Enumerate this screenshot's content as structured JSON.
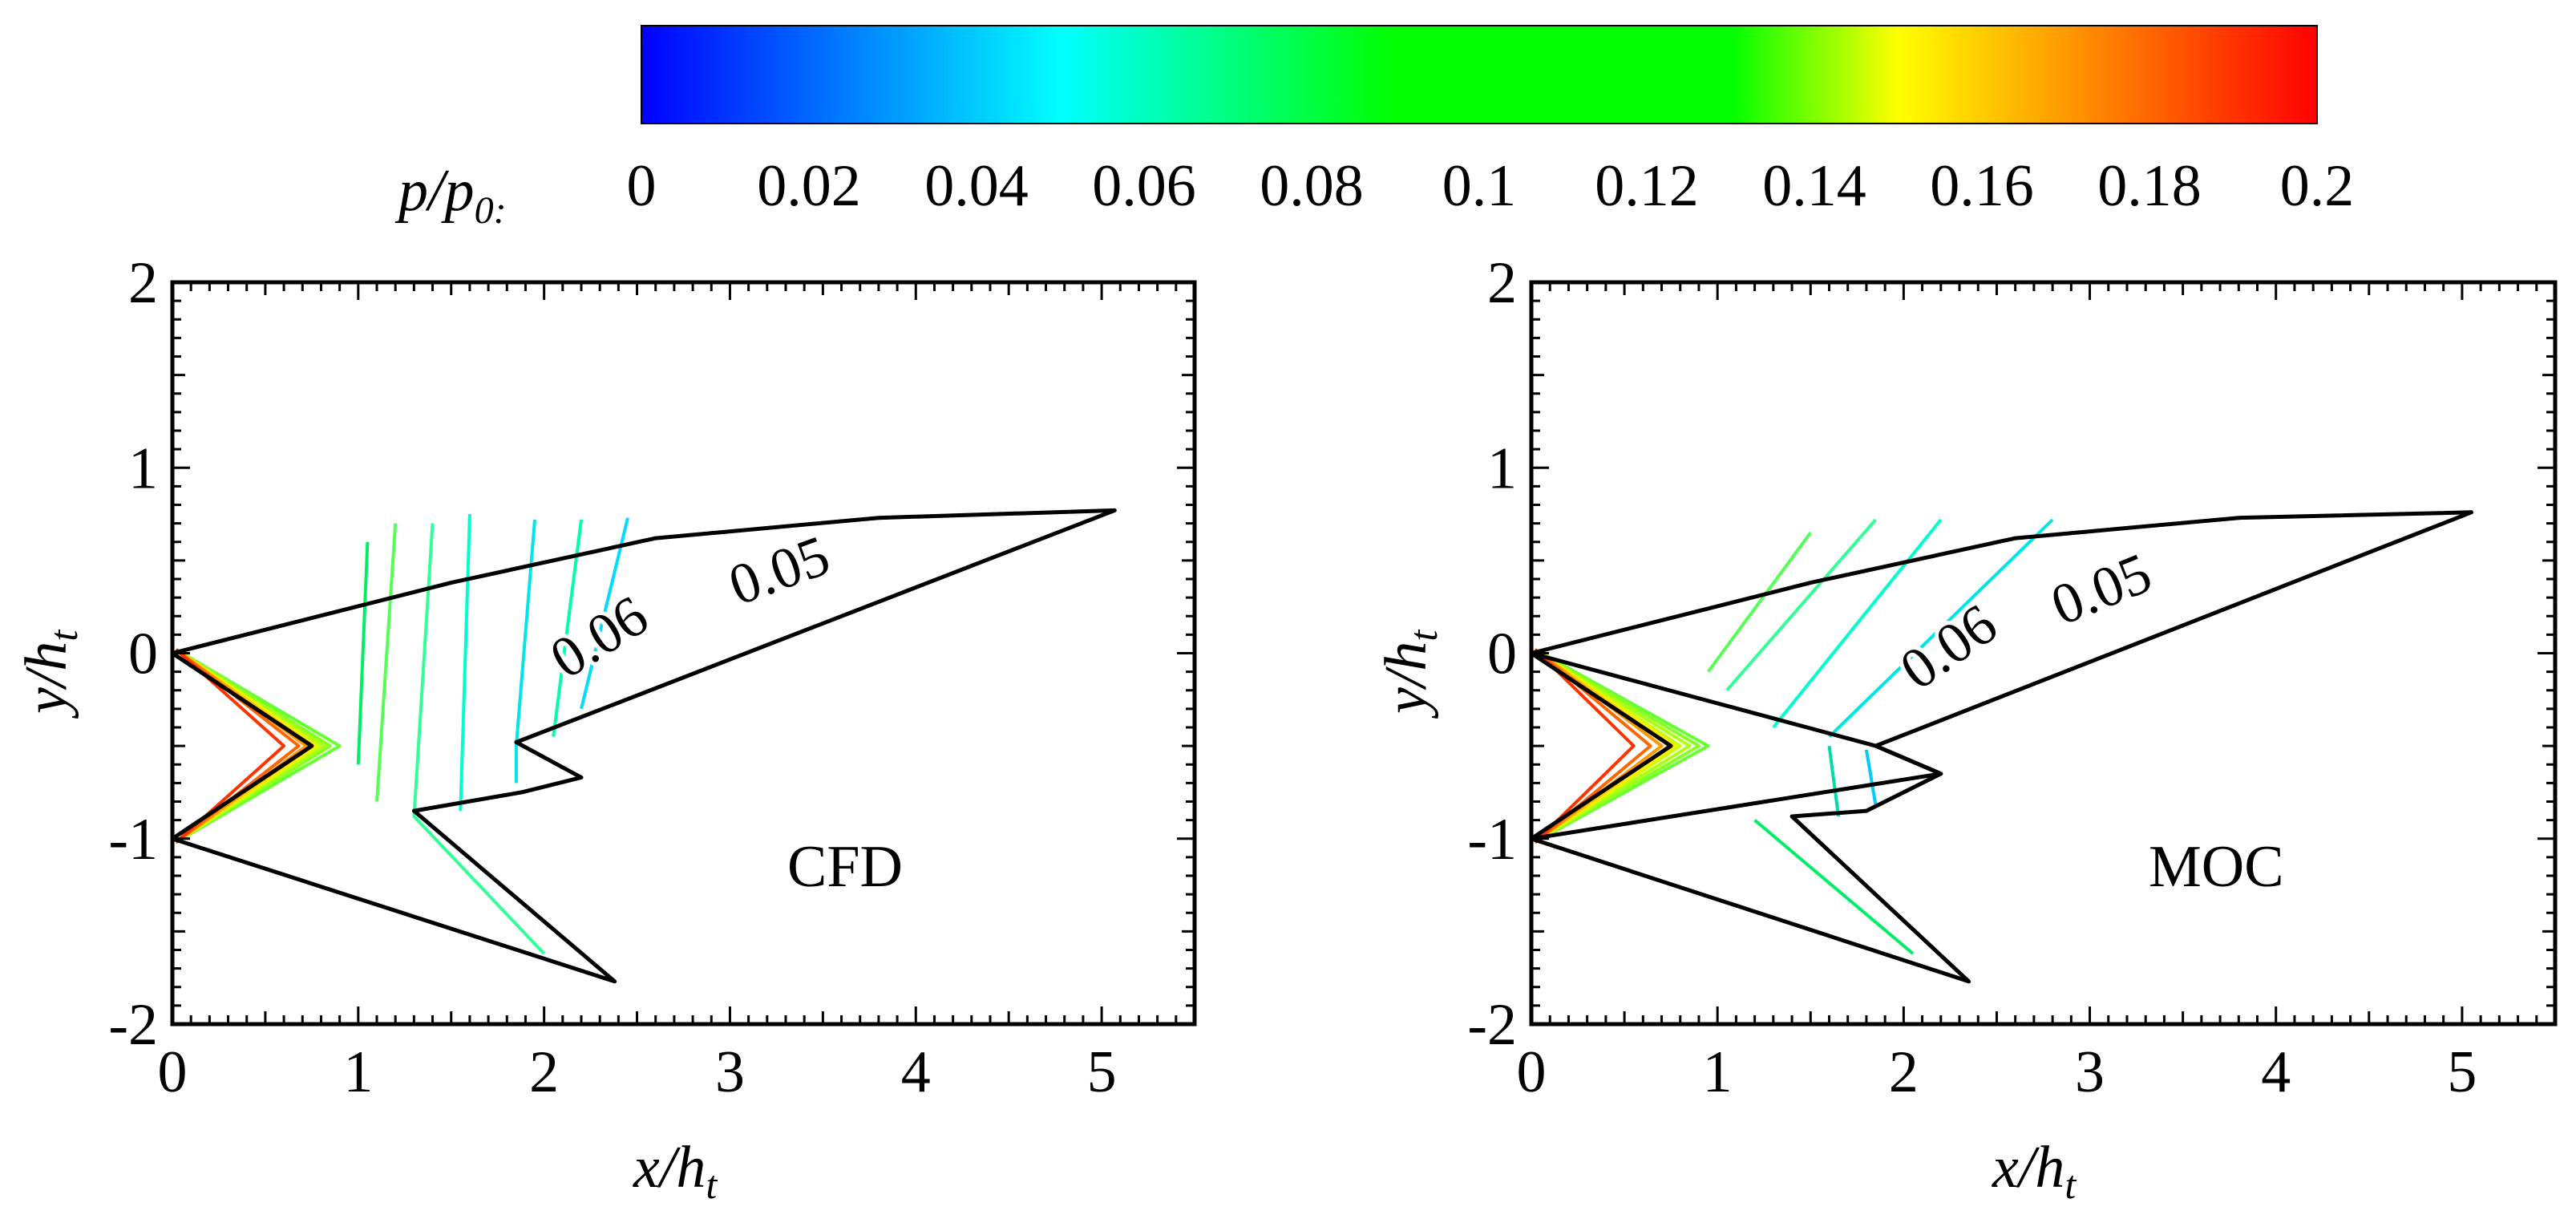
{
  "colorbar": {
    "label_main": "p/p",
    "label_sub": "0:",
    "ticks": [
      "0",
      "0.02",
      "0.04",
      "0.06",
      "0.08",
      "0.1",
      "0.12",
      "0.14",
      "0.16",
      "0.18",
      "0.2"
    ],
    "range": [
      0,
      0.2
    ],
    "stops": [
      {
        "value": 0.0,
        "color": "#0000ff"
      },
      {
        "value": 0.05,
        "color": "#00ffff"
      },
      {
        "value": 0.09,
        "color": "#00ff00"
      },
      {
        "value": 0.13,
        "color": "#00ff00"
      },
      {
        "value": 0.15,
        "color": "#ffff00"
      },
      {
        "value": 0.2,
        "color": "#ff0000"
      }
    ]
  },
  "chart_data": [
    {
      "type": "contour",
      "name": "CFD",
      "annotation": "CFD",
      "xlabel_main": "x/h",
      "xlabel_sub": "t",
      "ylabel_main": "y/h",
      "ylabel_sub": "t",
      "xlim": [
        0,
        5.5
      ],
      "ylim": [
        -2,
        2
      ],
      "xticks": [
        0,
        1,
        2,
        3,
        4,
        5
      ],
      "yticks": [
        -2,
        -1,
        0,
        1,
        2
      ],
      "contour_labels": [
        {
          "text": "0.06",
          "x": 2.35,
          "y": 0.0,
          "angle": 32
        },
        {
          "text": "0.05",
          "x": 3.3,
          "y": 0.35,
          "angle": 20
        }
      ],
      "boundaries": [
        [
          [
            0,
            0
          ],
          [
            1.5,
            0.38
          ],
          [
            2.6,
            0.62
          ],
          [
            3.8,
            0.73
          ],
          [
            5.07,
            0.77
          ],
          [
            1.85,
            -0.48
          ],
          [
            2.2,
            -0.67
          ],
          [
            1.88,
            -0.75
          ],
          [
            1.3,
            -0.85
          ],
          [
            2.38,
            -1.77
          ],
          [
            0,
            -1.0
          ],
          [
            0.75,
            -0.5
          ],
          [
            0,
            0
          ]
        ]
      ],
      "contours": [
        {
          "color": "#00e5e5",
          "pts": [
            [
              1.95,
              0.72
            ],
            [
              1.85,
              -0.5
            ],
            [
              1.85,
              -0.7
            ]
          ]
        },
        {
          "color": "#00ffcc",
          "pts": [
            [
              1.6,
              0.75
            ],
            [
              1.55,
              -0.85
            ]
          ]
        },
        {
          "color": "#33ff99",
          "pts": [
            [
              1.4,
              0.7
            ],
            [
              1.3,
              -0.88
            ],
            [
              2.0,
              -1.62
            ]
          ]
        },
        {
          "color": "#55ff55",
          "pts": [
            [
              1.2,
              0.7
            ],
            [
              1.1,
              -0.8
            ]
          ]
        },
        {
          "color": "#66ff33",
          "pts": [
            [
              0.02,
              0.02
            ],
            [
              0.9,
              -0.5
            ],
            [
              0.02,
              -1.02
            ]
          ]
        },
        {
          "color": "#88ff22",
          "pts": [
            [
              0.02,
              0.02
            ],
            [
              0.85,
              -0.5
            ],
            [
              0.02,
              -1.02
            ]
          ]
        },
        {
          "color": "#aaff11",
          "pts": [
            [
              0.02,
              0.02
            ],
            [
              0.82,
              -0.5
            ],
            [
              0.02,
              -1.02
            ]
          ]
        },
        {
          "color": "#ccff00",
          "pts": [
            [
              0.02,
              0.02
            ],
            [
              0.79,
              -0.5
            ],
            [
              0.02,
              -1.02
            ]
          ]
        },
        {
          "color": "#ffee00",
          "pts": [
            [
              0.02,
              0.02
            ],
            [
              0.77,
              -0.5
            ],
            [
              0.02,
              -1.02
            ]
          ]
        },
        {
          "color": "#ffcc00",
          "pts": [
            [
              0.02,
              0.02
            ],
            [
              0.75,
              -0.5
            ],
            [
              0.02,
              -1.02
            ]
          ]
        },
        {
          "color": "#ff9900",
          "pts": [
            [
              0.02,
              0.02
            ],
            [
              0.72,
              -0.5
            ],
            [
              0.02,
              -1.02
            ]
          ]
        },
        {
          "color": "#ff6600",
          "pts": [
            [
              0.02,
              0.02
            ],
            [
              0.68,
              -0.5
            ],
            [
              0.02,
              -1.02
            ]
          ]
        },
        {
          "color": "#ff3300",
          "pts": [
            [
              0.02,
              0.02
            ],
            [
              0.6,
              -0.5
            ],
            [
              0.02,
              -1.02
            ]
          ]
        },
        {
          "color": "#00ee66",
          "pts": [
            [
              1.05,
              0.6
            ],
            [
              1.0,
              -0.6
            ]
          ]
        },
        {
          "color": "#00ffaa",
          "pts": [
            [
              2.2,
              0.72
            ],
            [
              2.05,
              -0.45
            ]
          ]
        },
        {
          "color": "#00ddff",
          "pts": [
            [
              2.45,
              0.73
            ],
            [
              2.2,
              -0.3
            ]
          ]
        }
      ]
    },
    {
      "type": "contour",
      "name": "MOC",
      "annotation": "MOC",
      "xlabel_main": "x/h",
      "xlabel_sub": "t",
      "ylabel_main": "y/h",
      "ylabel_sub": "t",
      "xlim": [
        0,
        5.5
      ],
      "ylim": [
        -2,
        2
      ],
      "xticks": [
        0,
        1,
        2,
        3,
        4,
        5
      ],
      "yticks": [
        -2,
        -1,
        0,
        1,
        2
      ],
      "contour_labels": [
        {
          "text": "0.06",
          "x": 2.3,
          "y": -0.05,
          "angle": 35
        },
        {
          "text": "0.05",
          "x": 3.1,
          "y": 0.25,
          "angle": 22
        }
      ],
      "boundaries": [
        [
          [
            0,
            0
          ],
          [
            1.5,
            0.38
          ],
          [
            2.6,
            0.62
          ],
          [
            3.8,
            0.73
          ],
          [
            5.05,
            0.76
          ],
          [
            1.85,
            -0.5
          ],
          [
            2.2,
            -0.65
          ],
          [
            1.8,
            -0.85
          ],
          [
            1.4,
            -0.88
          ],
          [
            2.35,
            -1.77
          ],
          [
            0,
            -1.0
          ],
          [
            0.75,
            -0.5
          ],
          [
            0,
            0
          ]
        ],
        [
          [
            0,
            0
          ],
          [
            1.85,
            -0.5
          ],
          [
            2.2,
            -0.65
          ],
          [
            0,
            -1.0
          ]
        ]
      ],
      "contours": [
        {
          "color": "#00bfff",
          "pts": [
            [
              5.05,
              0.76
            ],
            [
              1.85,
              -0.5
            ]
          ]
        },
        {
          "color": "#00e5e5",
          "pts": [
            [
              2.8,
              0.72
            ],
            [
              1.6,
              -0.45
            ]
          ]
        },
        {
          "color": "#00ffcc",
          "pts": [
            [
              2.2,
              0.72
            ],
            [
              1.3,
              -0.4
            ]
          ]
        },
        {
          "color": "#33ff99",
          "pts": [
            [
              1.85,
              0.72
            ],
            [
              1.05,
              -0.2
            ]
          ]
        },
        {
          "color": "#55ff55",
          "pts": [
            [
              1.5,
              0.65
            ],
            [
              0.95,
              -0.1
            ]
          ]
        },
        {
          "color": "#00ee66",
          "pts": [
            [
              1.2,
              -0.9
            ],
            [
              2.05,
              -1.62
            ]
          ]
        },
        {
          "color": "#66ff33",
          "pts": [
            [
              0.02,
              0.02
            ],
            [
              0.95,
              -0.5
            ],
            [
              0.02,
              -1.02
            ]
          ]
        },
        {
          "color": "#88ff22",
          "pts": [
            [
              0.02,
              0.02
            ],
            [
              0.9,
              -0.5
            ],
            [
              0.02,
              -1.02
            ]
          ]
        },
        {
          "color": "#aaff11",
          "pts": [
            [
              0.02,
              0.02
            ],
            [
              0.85,
              -0.5
            ],
            [
              0.02,
              -1.02
            ]
          ]
        },
        {
          "color": "#ccff00",
          "pts": [
            [
              0.02,
              0.02
            ],
            [
              0.8,
              -0.5
            ],
            [
              0.02,
              -1.02
            ]
          ]
        },
        {
          "color": "#ffee00",
          "pts": [
            [
              0.02,
              0.02
            ],
            [
              0.77,
              -0.5
            ],
            [
              0.02,
              -1.02
            ]
          ]
        },
        {
          "color": "#ffcc00",
          "pts": [
            [
              0.02,
              0.02
            ],
            [
              0.74,
              -0.5
            ],
            [
              0.02,
              -1.02
            ]
          ]
        },
        {
          "color": "#ff9900",
          "pts": [
            [
              0.02,
              0.02
            ],
            [
              0.7,
              -0.5
            ],
            [
              0.02,
              -1.02
            ]
          ]
        },
        {
          "color": "#ff6600",
          "pts": [
            [
              0.02,
              0.02
            ],
            [
              0.64,
              -0.5
            ],
            [
              0.02,
              -1.02
            ]
          ]
        },
        {
          "color": "#ff3300",
          "pts": [
            [
              0.02,
              0.02
            ],
            [
              0.55,
              -0.5
            ],
            [
              0.02,
              -1.02
            ]
          ]
        },
        {
          "color": "#00ddaa",
          "pts": [
            [
              1.6,
              -0.5
            ],
            [
              1.65,
              -0.88
            ]
          ]
        },
        {
          "color": "#00ccff",
          "pts": [
            [
              1.8,
              -0.52
            ],
            [
              1.85,
              -0.82
            ]
          ]
        }
      ]
    }
  ]
}
